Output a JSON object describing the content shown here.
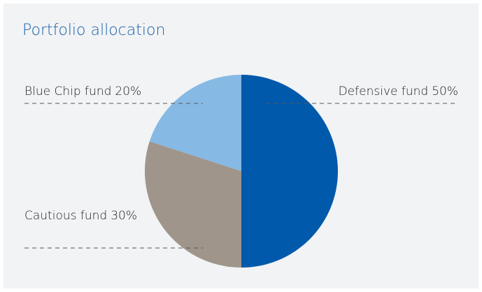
{
  "chart_data": {
    "type": "pie",
    "title": "Portfolio allocation",
    "categories": [
      "Defensive fund",
      "Cautious fund",
      "Blue Chip fund"
    ],
    "values": [
      50,
      30,
      20
    ],
    "value_labels": [
      "50%",
      "30%",
      "20%"
    ],
    "colors": [
      "#0059aa",
      "#a0958b",
      "#86b9e4"
    ]
  }
}
